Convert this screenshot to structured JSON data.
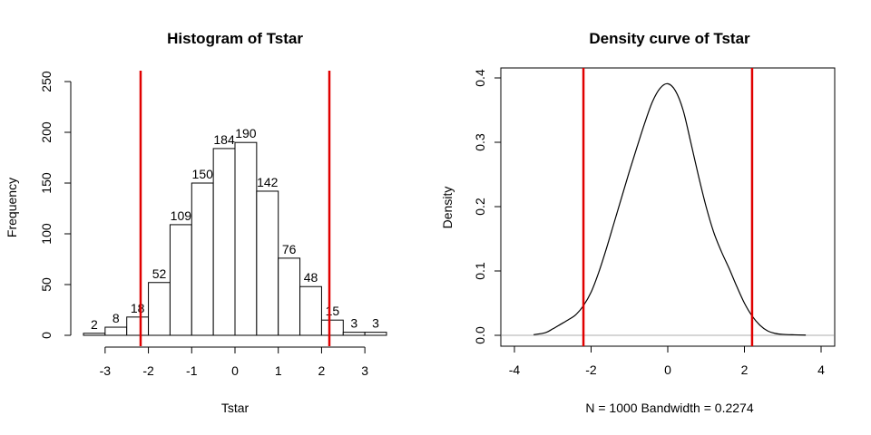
{
  "chart_data": [
    {
      "type": "bar",
      "title": "Histogram of Tstar",
      "xlabel": "Tstar",
      "ylabel": "Frequency",
      "bin_edges": [
        -3.5,
        -3.0,
        -2.5,
        -2.0,
        -1.5,
        -1.0,
        -0.5,
        0.0,
        0.5,
        1.0,
        1.5,
        2.0,
        2.5,
        3.0,
        3.5
      ],
      "values": [
        2,
        8,
        18,
        52,
        109,
        150,
        184,
        190,
        142,
        76,
        48,
        15,
        3,
        3
      ],
      "xticks": [
        -3,
        -2,
        -1,
        0,
        1,
        2,
        3
      ],
      "yticks": [
        0,
        50,
        100,
        150,
        200,
        250
      ],
      "xlim": [
        -3.5,
        3.5
      ],
      "ylim": [
        0,
        250
      ],
      "vlines": [
        -2.18,
        2.18
      ],
      "vline_color": "#e00000",
      "bar_fill": "#ffffff",
      "bar_stroke": "#000000"
    },
    {
      "type": "line",
      "title": "Density curve of Tstar",
      "xlabel": "N = 1000   Bandwidth = 0.2274",
      "ylabel": "Density",
      "x": [
        -3.5,
        -3.2,
        -3.0,
        -2.8,
        -2.6,
        -2.4,
        -2.2,
        -2.0,
        -1.8,
        -1.6,
        -1.4,
        -1.2,
        -1.0,
        -0.8,
        -0.6,
        -0.4,
        -0.2,
        0.0,
        0.2,
        0.4,
        0.6,
        0.8,
        1.0,
        1.2,
        1.4,
        1.6,
        1.8,
        2.0,
        2.2,
        2.4,
        2.6,
        2.8,
        3.0,
        3.3,
        3.6
      ],
      "y": [
        0.001,
        0.004,
        0.01,
        0.017,
        0.024,
        0.032,
        0.046,
        0.067,
        0.098,
        0.135,
        0.175,
        0.215,
        0.255,
        0.293,
        0.33,
        0.363,
        0.384,
        0.391,
        0.38,
        0.35,
        0.3,
        0.248,
        0.2,
        0.16,
        0.13,
        0.104,
        0.076,
        0.05,
        0.03,
        0.016,
        0.007,
        0.003,
        0.0015,
        0.0008,
        0.0004
      ],
      "xticks": [
        -4,
        -2,
        0,
        2,
        4
      ],
      "yticks": [
        0.0,
        0.1,
        0.2,
        0.3,
        0.4
      ],
      "ytick_labels": [
        "0.0",
        "0.1",
        "0.2",
        "0.3",
        "0.4"
      ],
      "xlim": [
        -4.0,
        4.4
      ],
      "ylim": [
        0,
        0.41
      ],
      "vlines": [
        -2.2,
        2.2
      ],
      "vline_color": "#e00000",
      "baseline_color": "#bdbdbd",
      "line_color": "#000000"
    }
  ]
}
